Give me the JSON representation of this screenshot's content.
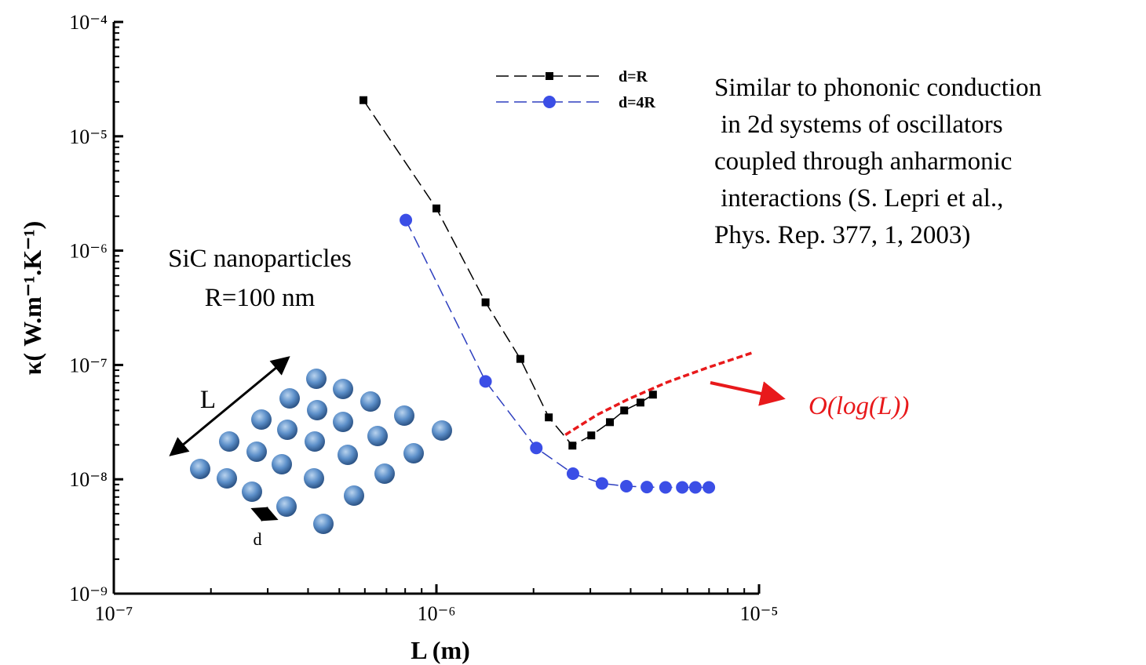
{
  "chart_data": {
    "type": "line",
    "xlabel": "L (m)",
    "ylabel": "κ( W.m⁻¹.K⁻¹)",
    "xscale": "log",
    "yscale": "log",
    "xlim": [
      1e-07,
      1e-05
    ],
    "ylim": [
      1e-09,
      0.0001
    ],
    "xticks": [
      {
        "value": 1e-07,
        "label": "10⁻⁷"
      },
      {
        "value": 1e-06,
        "label": "10⁻⁶"
      },
      {
        "value": 1e-05,
        "label": "10⁻⁵"
      }
    ],
    "yticks": [
      {
        "value": 1e-09,
        "label": "10⁻⁹"
      },
      {
        "value": 1e-08,
        "label": "10⁻⁸"
      },
      {
        "value": 1e-07,
        "label": "10⁻⁷"
      },
      {
        "value": 1e-06,
        "label": "10⁻⁶"
      },
      {
        "value": 1e-05,
        "label": "10⁻⁵"
      },
      {
        "value": 0.0001,
        "label": "10⁻⁴"
      }
    ],
    "legend": "top",
    "series": [
      {
        "name": "d=R",
        "color": "#000000",
        "marker": "square",
        "x": [
          5.94e-07,
          1e-06,
          1.42e-06,
          1.82e-06,
          2.23e-06,
          2.64e-06,
          3.02e-06,
          3.45e-06,
          3.82e-06,
          4.29e-06,
          4.69e-06
        ],
        "values": [
          2.07e-05,
          2.34e-06,
          3.53e-07,
          1.13e-07,
          3.48e-08,
          1.97e-08,
          2.42e-08,
          3.16e-08,
          4e-08,
          4.69e-08,
          5.5e-08
        ]
      },
      {
        "name": "d=4R",
        "color": "#2e3fbf",
        "marker": "circle",
        "x": [
          8.04e-07,
          1.42e-06,
          2.04e-06,
          2.65e-06,
          3.26e-06,
          3.88e-06,
          4.49e-06,
          5.13e-06,
          5.78e-06,
          6.35e-06,
          6.99e-06
        ],
        "values": [
          1.85e-06,
          7.18e-08,
          1.88e-08,
          1.12e-08,
          9.2e-09,
          8.7e-09,
          8.55e-09,
          8.5e-09,
          8.5e-09,
          8.5e-09,
          8.5e-09
        ]
      }
    ],
    "fit": {
      "color": "#e8191b",
      "x": [
        2.51e-06,
        3.14e-06,
        3.92e-06,
        5.19e-06,
        6.87e-06,
        9.62e-06
      ],
      "values": [
        2.45e-08,
        3.65e-08,
        5e-08,
        7.06e-08,
        9.4e-08,
        1.29e-07
      ]
    },
    "fit_label": "O(log(L))",
    "note_lines": [
      "Similar to phononic conduction",
      " in 2d systems of oscillators",
      "coupled through anharmonic",
      " interactions (S. Lepri et al.,",
      "Phys. Rep. 377, 1, 2003)"
    ],
    "material_lines": [
      "SiC nanoparticles",
      "R=100 nm"
    ],
    "inset_length_label": "L",
    "inset_spacing_label": "d"
  }
}
